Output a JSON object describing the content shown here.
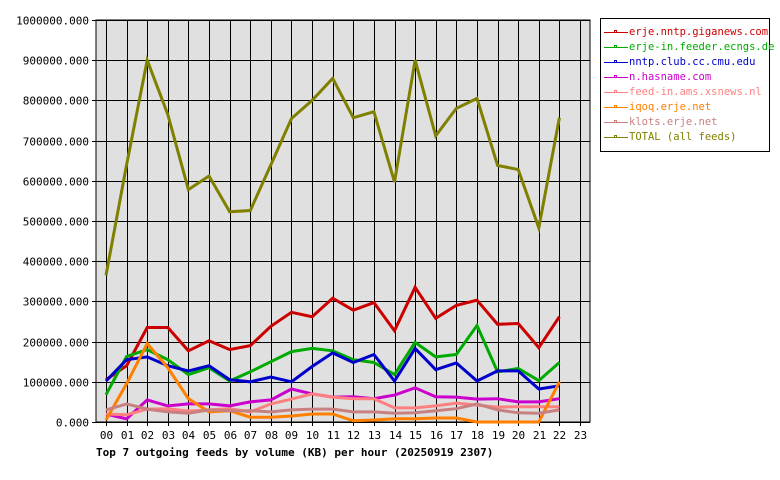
{
  "chart_data": {
    "type": "line",
    "title": "Top 7 outgoing feeds by volume (KB) per hour (20250919 2307)",
    "xlabel": "",
    "ylabel": "",
    "ylim": [
      0,
      1000000
    ],
    "grid": true,
    "legend_position": "right",
    "x": [
      "00",
      "01",
      "02",
      "03",
      "04",
      "05",
      "06",
      "07",
      "08",
      "09",
      "10",
      "11",
      "12",
      "13",
      "14",
      "15",
      "16",
      "17",
      "18",
      "19",
      "20",
      "21",
      "22",
      "23"
    ],
    "y_ticks": [
      "0.000",
      "100000.000",
      "200000.000",
      "300000.000",
      "400000.000",
      "500000.000",
      "600000.000",
      "700000.000",
      "800000.000",
      "900000.000",
      "1000000.000"
    ],
    "series": [
      {
        "name": "erje.nntp.giganews.com",
        "color": "#cc0000",
        "values": [
          105000,
          140000,
          235000,
          235000,
          177000,
          202000,
          180000,
          190000,
          238000,
          273000,
          262000,
          308000,
          278000,
          297000,
          227000,
          335000,
          258000,
          290000,
          303000,
          243000,
          245000,
          185000,
          262000
        ]
      },
      {
        "name": "erje-in.feeder.ecngs.de",
        "color": "#00aa00",
        "values": [
          68000,
          163000,
          180000,
          155000,
          118000,
          135000,
          102000,
          125000,
          150000,
          175000,
          183000,
          177000,
          155000,
          148000,
          118000,
          198000,
          162000,
          168000,
          240000,
          125000,
          133000,
          103000,
          148000
        ]
      },
      {
        "name": "nntp.club.cc.cmu.edu",
        "color": "#0000cc",
        "values": [
          102000,
          155000,
          162000,
          140000,
          127000,
          140000,
          105000,
          100000,
          112000,
          100000,
          138000,
          172000,
          148000,
          168000,
          102000,
          183000,
          130000,
          147000,
          102000,
          127000,
          127000,
          82000,
          90000
        ]
      },
      {
        "name": "n.hasname.com",
        "color": "#cc00cc",
        "values": [
          20000,
          8000,
          55000,
          40000,
          45000,
          45000,
          40000,
          50000,
          55000,
          82000,
          70000,
          62000,
          63000,
          58000,
          67000,
          85000,
          63000,
          62000,
          57000,
          58000,
          50000,
          50000,
          58000
        ]
      },
      {
        "name": "feed-in.ams.xsnews.nl",
        "color": "#ff8080",
        "values": [
          20000,
          18000,
          32000,
          33000,
          27000,
          30000,
          33000,
          25000,
          45000,
          57000,
          70000,
          62000,
          58000,
          58000,
          35000,
          35000,
          40000,
          47000,
          42000,
          37000,
          38000,
          38000,
          38000
        ]
      },
      {
        "name": "iqoq.erje.net",
        "color": "#ff7f00",
        "values": [
          5000,
          95000,
          195000,
          135000,
          58000,
          25000,
          28000,
          12000,
          12000,
          15000,
          20000,
          20000,
          3000,
          5000,
          8000,
          8000,
          10000,
          10000,
          0,
          0,
          0,
          0,
          100000
        ]
      },
      {
        "name": "klots.erje.net",
        "color": "#c88080",
        "values": [
          30000,
          45000,
          32000,
          25000,
          22000,
          30000,
          28000,
          28000,
          25000,
          30000,
          32000,
          32000,
          25000,
          25000,
          22000,
          23000,
          28000,
          33000,
          45000,
          30000,
          23000,
          22000,
          30000
        ]
      },
      {
        "name": "TOTAL (all feeds)",
        "color": "#808000",
        "values": [
          365000,
          640000,
          900000,
          765000,
          578000,
          612000,
          523000,
          526000,
          640000,
          755000,
          800000,
          855000,
          757000,
          772000,
          597000,
          900000,
          712000,
          780000,
          805000,
          638000,
          628000,
          483000,
          757000
        ]
      }
    ]
  },
  "legend": {
    "items": [
      {
        "label": "erje.nntp.giganews.com",
        "color": "#cc0000"
      },
      {
        "label": "erje-in.feeder.ecngs.de",
        "color": "#00aa00"
      },
      {
        "label": "nntp.club.cc.cmu.edu",
        "color": "#0000cc"
      },
      {
        "label": "n.hasname.com",
        "color": "#cc00cc"
      },
      {
        "label": "feed-in.ams.xsnews.nl",
        "color": "#ff8080"
      },
      {
        "label": "iqoq.erje.net",
        "color": "#ff7f00"
      },
      {
        "label": "klots.erje.net",
        "color": "#c88080"
      },
      {
        "label": "TOTAL (all feeds)",
        "color": "#808000"
      }
    ]
  },
  "colors": {
    "plot_background": "#e0e0e0",
    "grid": "#000000",
    "page_background": "#ffffff"
  }
}
